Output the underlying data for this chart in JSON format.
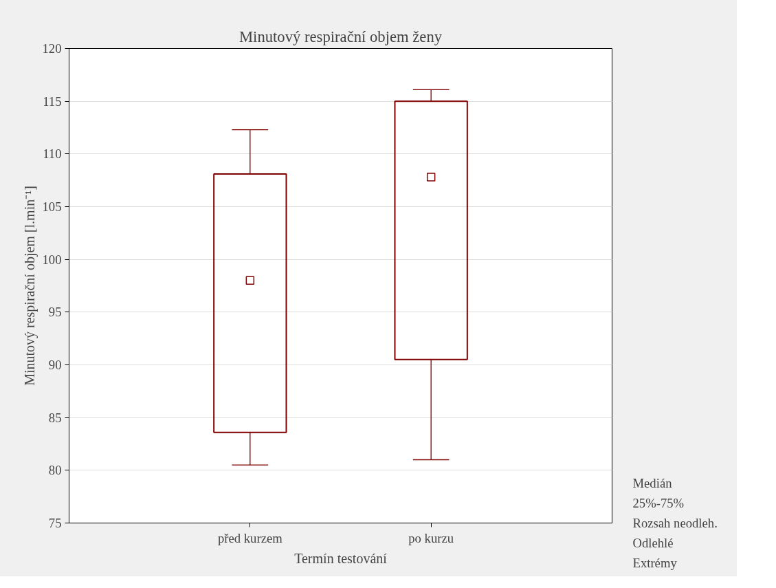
{
  "chart_data": {
    "type": "box",
    "title": "Minutový respirační objem ženy",
    "xlabel": "Termín testování",
    "ylabel": "Minutový respirační objem [l.min⁻¹]",
    "categories": [
      "před kurzem",
      "po kurzu"
    ],
    "boxes": [
      {
        "low": 80.5,
        "q1": 83.6,
        "median": 98.0,
        "q3": 108.1,
        "high": 112.3
      },
      {
        "low": 81.0,
        "q1": 90.5,
        "median": 107.8,
        "q3": 115.0,
        "high": 116.1
      }
    ],
    "color": "#800000",
    "marker": "square",
    "ylim": [
      75,
      120
    ],
    "yticks": [
      75,
      80,
      85,
      90,
      95,
      100,
      105,
      110,
      115,
      120
    ],
    "grid": "y",
    "annotations": [
      "Medián",
      "25%-75%",
      "Rozsah neodleh.",
      "Odlehlé",
      "Extrémy"
    ]
  }
}
